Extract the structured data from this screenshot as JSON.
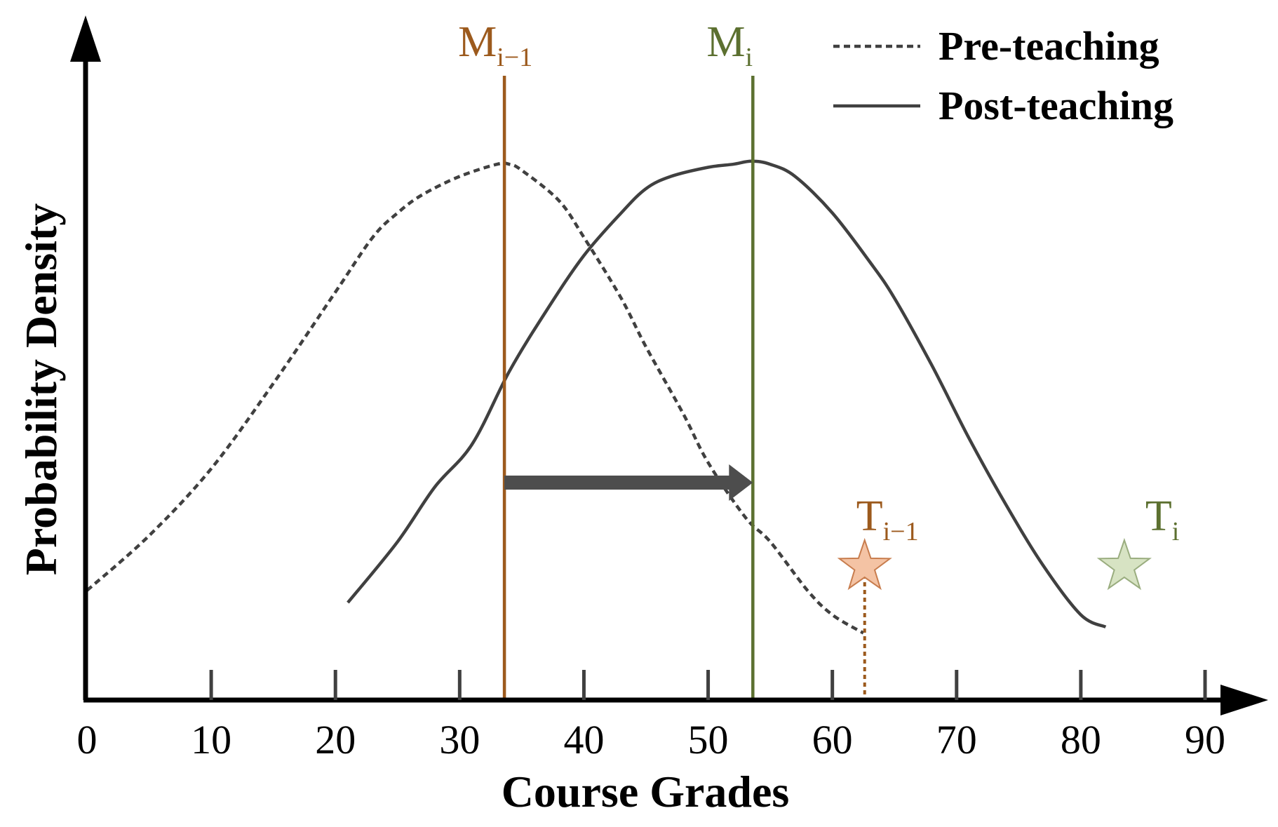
{
  "chart_data": {
    "type": "line",
    "xlabel": "Course Grades",
    "ylabel": "Probability Density",
    "xlim": [
      0,
      90
    ],
    "x_ticks": [
      "0",
      "10",
      "20",
      "30",
      "40",
      "50",
      "60",
      "70",
      "80",
      "90"
    ],
    "grid": false,
    "legend_position": "top-right",
    "series": [
      {
        "name": "Pre-teaching",
        "style": "dashed",
        "color": "#404040",
        "x": [
          0,
          5,
          10,
          15,
          20,
          23,
          25,
          27,
          30,
          33,
          34,
          35,
          38,
          40,
          43,
          45,
          48,
          50,
          53,
          55,
          58,
          60,
          62.5
        ],
        "y": [
          0.18,
          0.27,
          0.38,
          0.52,
          0.67,
          0.76,
          0.8,
          0.83,
          0.86,
          0.88,
          0.88,
          0.87,
          0.82,
          0.76,
          0.66,
          0.58,
          0.47,
          0.39,
          0.3,
          0.26,
          0.18,
          0.14,
          0.11
        ]
      },
      {
        "name": "Post-teaching",
        "style": "solid",
        "color": "#404040",
        "x": [
          21,
          25,
          28,
          31,
          34,
          37,
          40,
          43,
          45,
          47,
          50,
          52,
          53.5,
          55,
          57,
          60,
          63,
          65,
          68,
          71,
          74,
          77,
          80,
          82
        ],
        "y": [
          0.16,
          0.26,
          0.35,
          0.42,
          0.54,
          0.64,
          0.73,
          0.8,
          0.84,
          0.86,
          0.875,
          0.88,
          0.885,
          0.88,
          0.86,
          0.8,
          0.72,
          0.66,
          0.55,
          0.43,
          0.32,
          0.22,
          0.14,
          0.12
        ]
      }
    ],
    "markers": [
      {
        "label": "M",
        "sub": "i−1",
        "x": 33.6,
        "color": "#9c5a1d"
      },
      {
        "label": "M",
        "sub": "i",
        "x": 53.6,
        "color": "#5c7030"
      }
    ],
    "targets": [
      {
        "label": "T",
        "sub": "i−1",
        "x": 62.6,
        "y": 0.12,
        "color": "#9c5a1d",
        "fill": "#f4c3a4",
        "stroke": "#c87d4e"
      },
      {
        "label": "T",
        "sub": "i",
        "x": 83.5,
        "y": 0.12,
        "color": "#5c7030",
        "fill": "#d7e3c3",
        "stroke": "#9aad7f"
      }
    ],
    "shift_arrow": {
      "from": 33.6,
      "to": 53.6,
      "y": 0.4,
      "color": "#4d4d4d"
    }
  },
  "colors": {
    "axis": "#000000",
    "curve": "#404040"
  }
}
